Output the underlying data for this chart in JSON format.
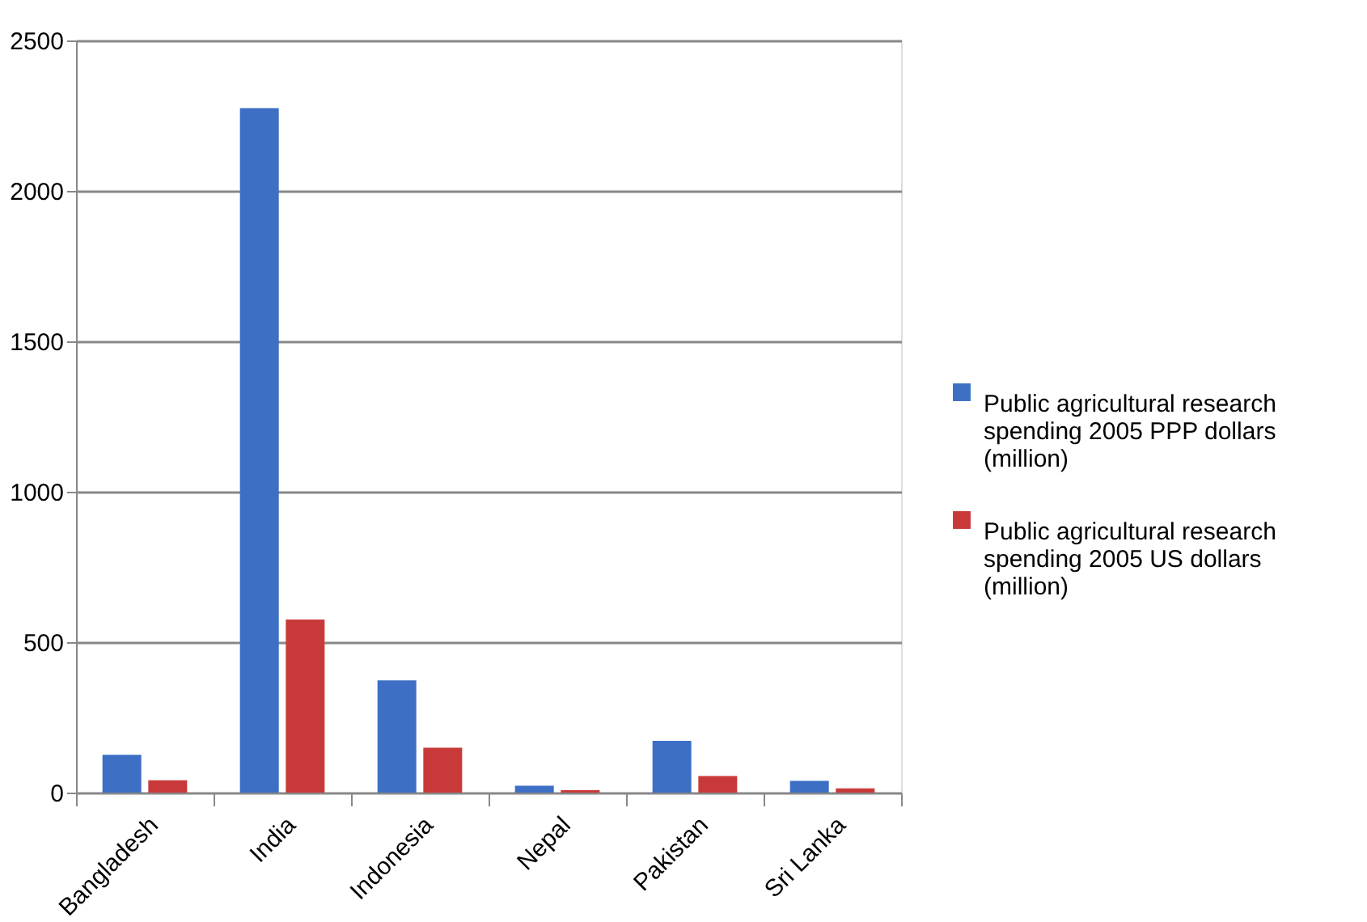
{
  "chart_data": {
    "type": "bar",
    "categories": [
      "Bangladesh",
      "India",
      "Indonesia",
      "Nepal",
      "Pakistan",
      "Sri Lanka"
    ],
    "series": [
      {
        "name": "Public agricultural research spending 2005 PPP dollars (million)",
        "color": "#3d6fc4",
        "values": [
          126,
          2275,
          373,
          23,
          172,
          39
        ]
      },
      {
        "name": "Public agricultural research spending 2005 US dollars (million)",
        "color": "#c83a3a",
        "values": [
          41,
          575,
          149,
          8,
          55,
          14
        ]
      }
    ],
    "ylim": [
      0,
      2500
    ],
    "yticks": [
      0,
      500,
      1000,
      1500,
      2000,
      2500
    ],
    "grid": "y",
    "legend": "right"
  }
}
